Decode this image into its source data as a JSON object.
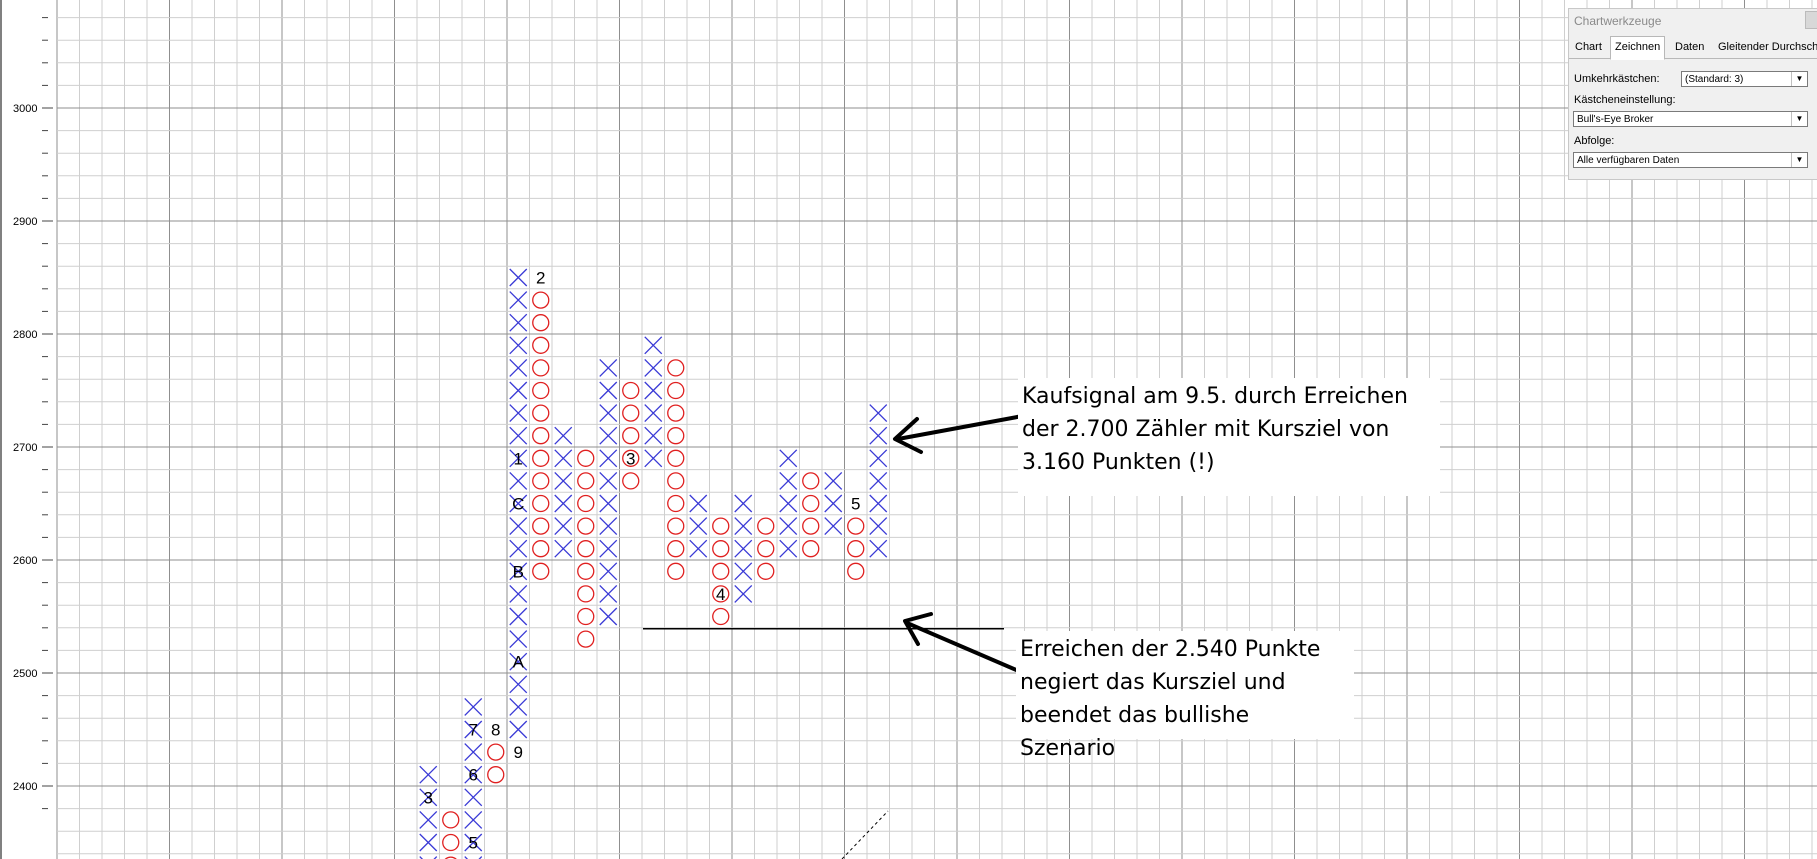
{
  "chart_data": {
    "type": "point-and-figure",
    "box_size": 20,
    "reversal": 3,
    "y_ticks": [
      "2400",
      "2500",
      "2600",
      "2700",
      "2800",
      "2900",
      "3000"
    ],
    "columns": [
      {
        "type": "X",
        "low": 2320,
        "high": 2420,
        "labels": [
          {
            "text": "3",
            "at": 2400
          }
        ]
      },
      {
        "type": "O",
        "high": 2380,
        "low": 2340
      },
      {
        "type": "X",
        "low": 2340,
        "high": 2480,
        "labels": [
          {
            "text": "5",
            "at": 2360
          },
          {
            "text": "6",
            "at": 2420
          },
          {
            "text": "7",
            "at": 2460
          }
        ]
      },
      {
        "type": "O",
        "high": 2440,
        "low": 2420,
        "labels": [
          {
            "text": "8",
            "at": 2460
          }
        ]
      },
      {
        "type": "X",
        "low": 2460,
        "high": 2860,
        "labels": [
          {
            "text": "9",
            "at": 2440
          },
          {
            "text": "A",
            "at": 2520
          },
          {
            "text": "B",
            "at": 2600
          },
          {
            "text": "C",
            "at": 2660
          },
          {
            "text": "1",
            "at": 2700
          }
        ]
      },
      {
        "type": "O",
        "high": 2840,
        "low": 2600,
        "labels": [
          {
            "text": "2",
            "at": 2860
          }
        ]
      },
      {
        "type": "X",
        "low": 2620,
        "high": 2720
      },
      {
        "type": "O",
        "high": 2700,
        "low": 2540
      },
      {
        "type": "X",
        "low": 2560,
        "high": 2780
      },
      {
        "type": "O",
        "high": 2760,
        "low": 2680,
        "labels": [
          {
            "text": "3",
            "at": 2700
          }
        ]
      },
      {
        "type": "X",
        "low": 2700,
        "high": 2800
      },
      {
        "type": "O",
        "high": 2780,
        "low": 2600
      },
      {
        "type": "X",
        "low": 2620,
        "high": 2660
      },
      {
        "type": "O",
        "high": 2640,
        "low": 2560,
        "labels": [
          {
            "text": "4",
            "at": 2580
          }
        ]
      },
      {
        "type": "X",
        "low": 2580,
        "high": 2660
      },
      {
        "type": "O",
        "high": 2640,
        "low": 2600
      },
      {
        "type": "X",
        "low": 2620,
        "high": 2700
      },
      {
        "type": "O",
        "high": 2680,
        "low": 2620
      },
      {
        "type": "X",
        "low": 2640,
        "high": 2680
      },
      {
        "type": "O",
        "high": 2640,
        "low": 2600,
        "labels": [
          {
            "text": "5",
            "at": 2660
          }
        ]
      },
      {
        "type": "X",
        "low": 2620,
        "high": 2740
      }
    ],
    "support_line": {
      "price": 2540
    },
    "annotations": [
      {
        "lines": [
          "Kaufsignal am 9.5. durch Erreichen",
          "der 2.700 Zähler mit Kursziel von",
          "3.160 Punkten (!)"
        ]
      },
      {
        "lines": [
          "Erreichen der 2.540 Punkte",
          "negiert das Kursziel und",
          "beendet das bullishe Szenario"
        ]
      }
    ]
  },
  "toolbox": {
    "title": "Chartwerkzeuge",
    "tabs": [
      "Chart",
      "Zeichnen",
      "Daten",
      "Gleitender Durchschnitt"
    ],
    "active_tab": "Zeichnen",
    "fields": [
      {
        "label": "Umkehrkästchen:",
        "value": "(Standard: 3)"
      },
      {
        "label": "Kästcheneinstellung:",
        "value": "Bull's-Eye Broker"
      },
      {
        "label": "Abfolge:",
        "value": "Alle verfügbaren Daten"
      }
    ]
  },
  "colors": {
    "x_mark": "#3a3ad6",
    "o_mark": "#e02020",
    "grid_major": "#8f8f8f",
    "grid_minor": "#cfcfcf"
  }
}
